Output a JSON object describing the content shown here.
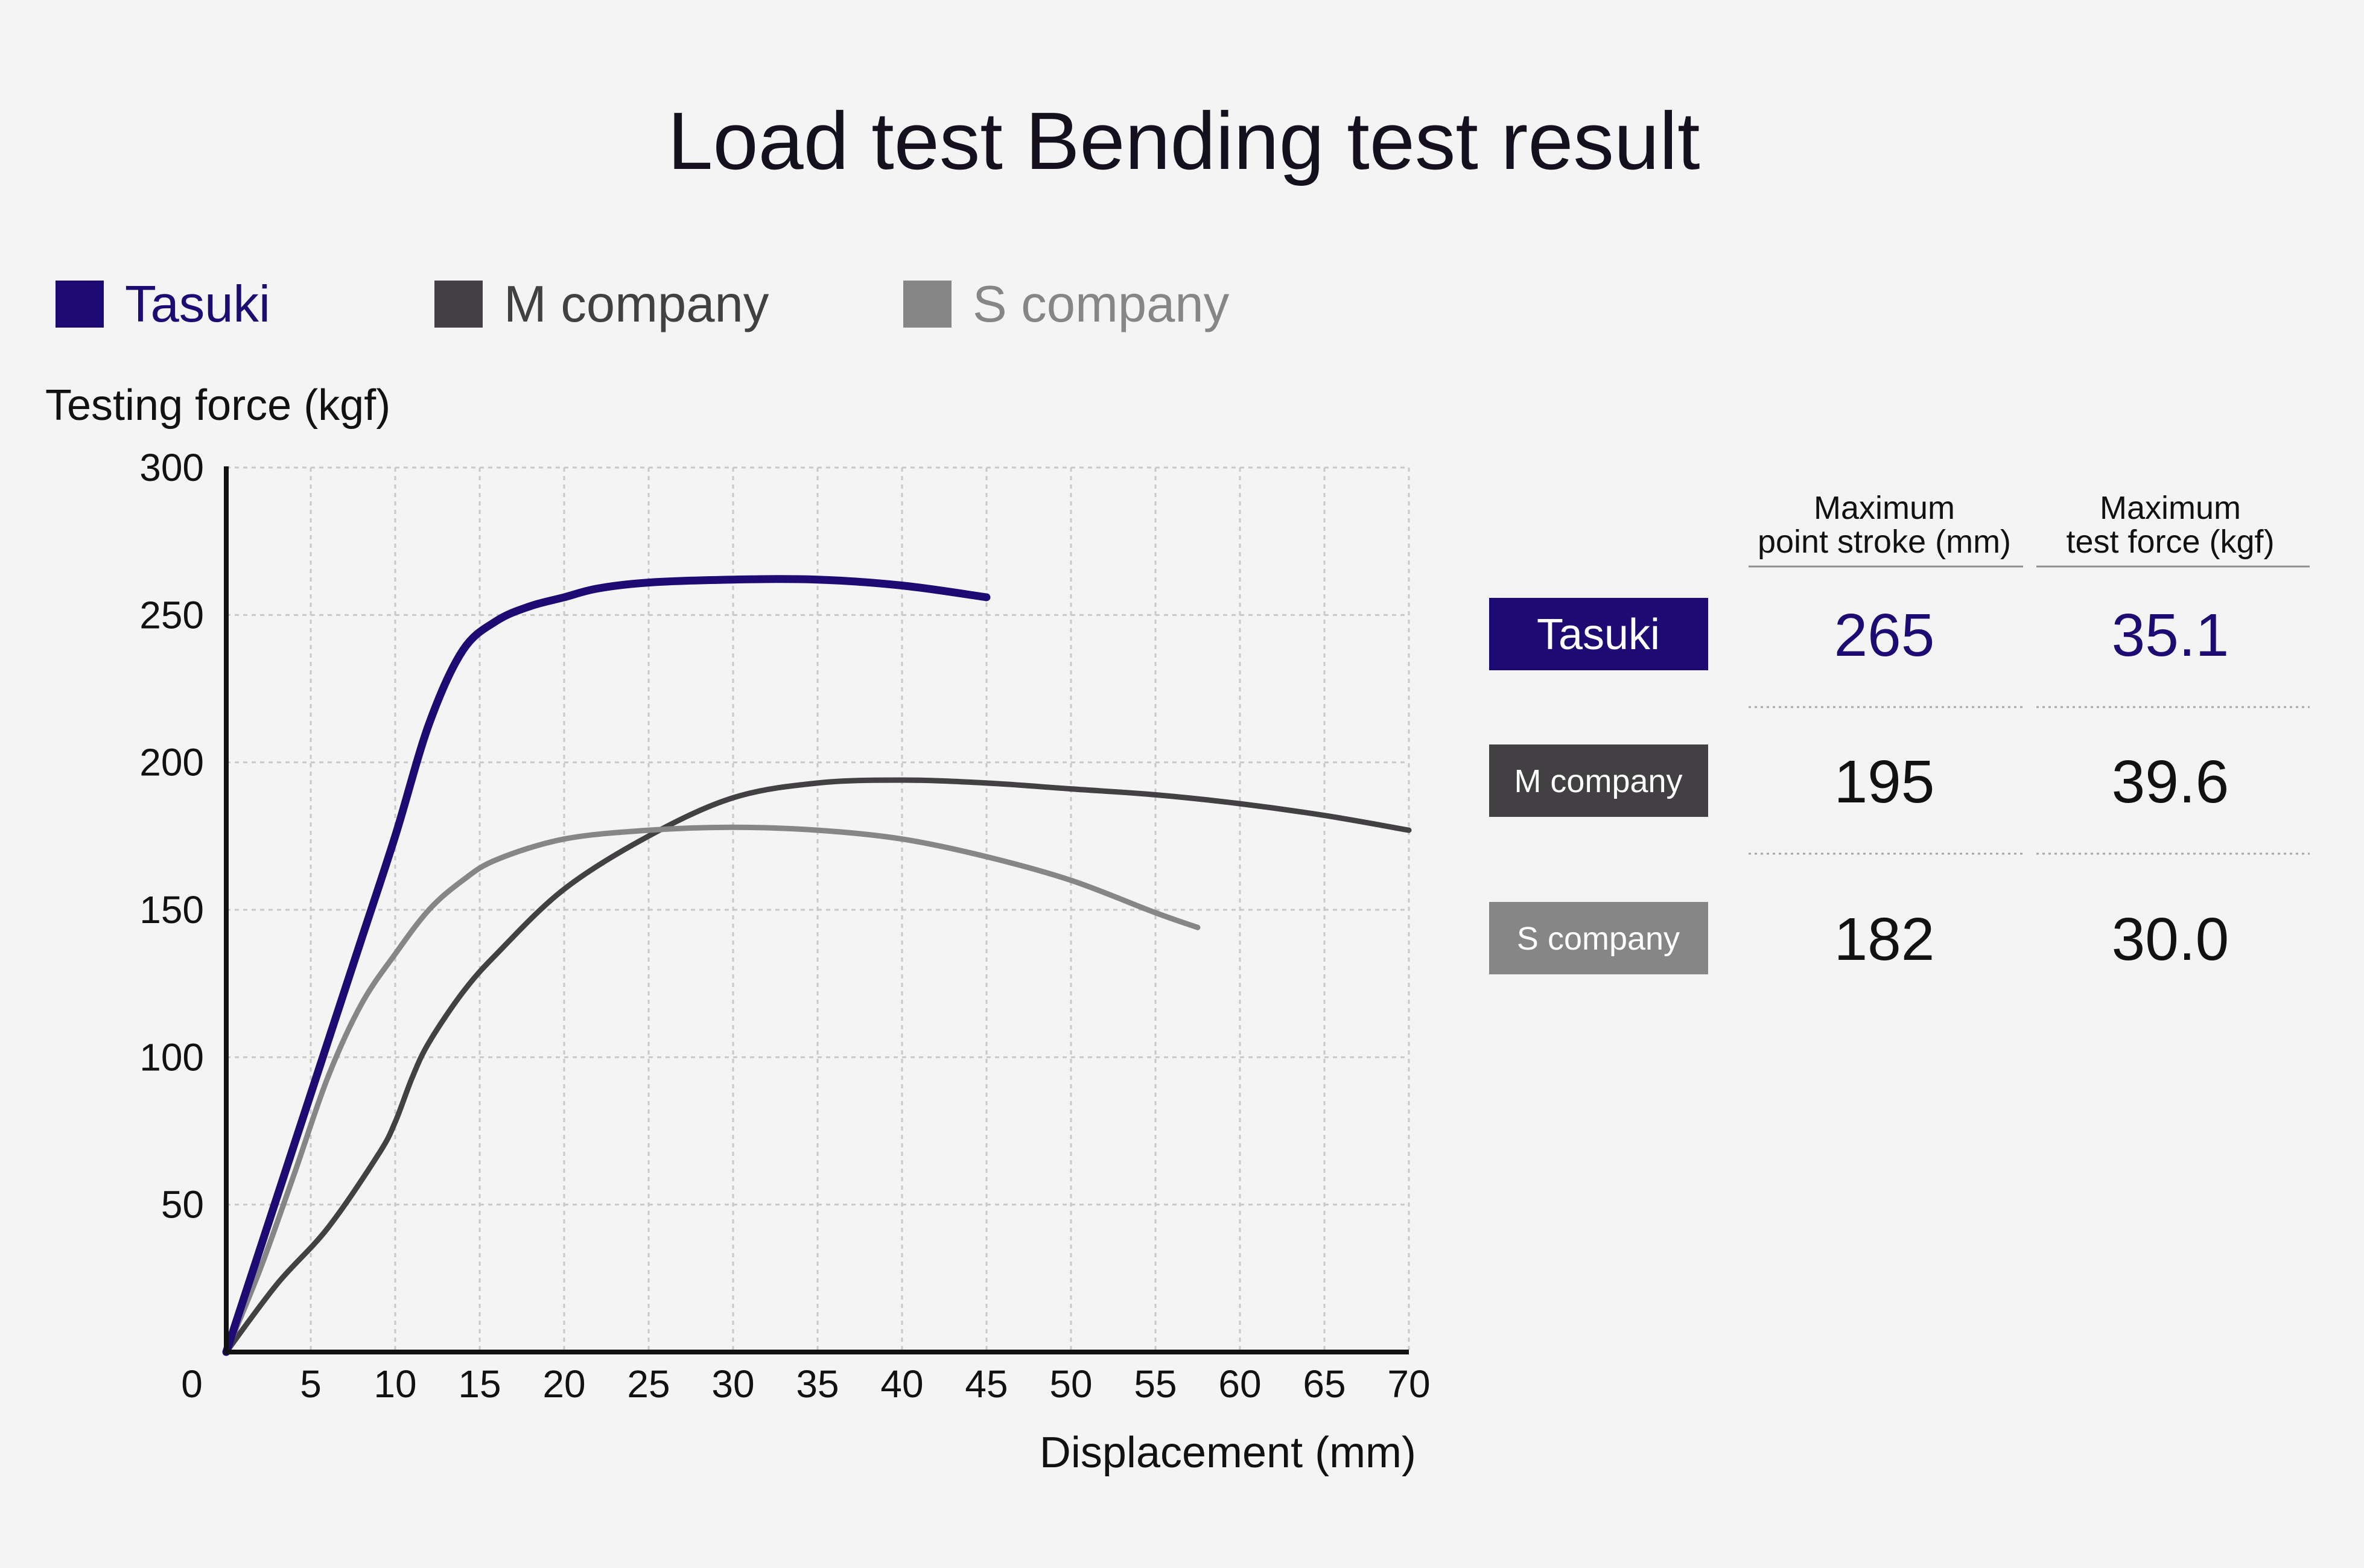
{
  "colors": {
    "tasuki": "#1e0a73",
    "m_company": "#424042",
    "s_company": "#868686",
    "text": "#111111",
    "background": "#f4f4f4"
  },
  "table": {
    "col_headers": [
      [
        "Maximum",
        "point stroke (mm)"
      ],
      [
        "Maximum",
        "test force (kgf)"
      ]
    ],
    "rows": [
      {
        "label": "Tasuki",
        "stroke": "265",
        "force": "35.1"
      },
      {
        "label": "M company",
        "stroke": "195",
        "force": "39.6"
      },
      {
        "label": "S company",
        "stroke": "182",
        "force": "30.0"
      }
    ]
  },
  "chart_data": {
    "type": "line",
    "title": "Load test Bending test result",
    "xlabel": "Displacement (mm)",
    "ylabel": "Testing force (kgf)",
    "xlim": [
      0,
      70
    ],
    "ylim": [
      0,
      300
    ],
    "x_ticks": [
      "5",
      "10",
      "15",
      "20",
      "25",
      "30",
      "35",
      "40",
      "45",
      "50",
      "55",
      "60",
      "65",
      "70"
    ],
    "y_ticks": [
      "50",
      "100",
      "150",
      "200",
      "250",
      "300"
    ],
    "origin_label": "0",
    "grid": true,
    "legend_position": "top-left",
    "series": [
      {
        "name": "Tasuki",
        "color": "#1e0a73",
        "x": [
          0,
          2,
          4,
          6,
          8,
          10,
          12,
          14,
          16,
          18,
          20,
          22,
          25,
          30,
          35,
          40,
          45
        ],
        "y": [
          0,
          35,
          70,
          105,
          140,
          175,
          213,
          238,
          248,
          253,
          256,
          259,
          261,
          262,
          262,
          260,
          256
        ]
      },
      {
        "name": "M company",
        "color": "#424042",
        "x": [
          0,
          3,
          6,
          9,
          10,
          11,
          12,
          14,
          16,
          20,
          25,
          30,
          35,
          40,
          45,
          50,
          55,
          60,
          65,
          70
        ],
        "y": [
          0,
          23,
          42,
          67,
          78,
          93,
          105,
          122,
          135,
          157,
          175,
          188,
          193,
          194,
          193,
          191,
          189,
          186,
          182,
          177
        ]
      },
      {
        "name": "S company",
        "color": "#868686",
        "x": [
          0,
          2,
          4,
          6,
          8,
          10,
          12,
          14,
          16,
          20,
          25,
          30,
          35,
          40,
          45,
          50,
          55,
          57.5
        ],
        "y": [
          0,
          28,
          60,
          93,
          118,
          135,
          150,
          160,
          167,
          174,
          177,
          178,
          177,
          174,
          168,
          160,
          149,
          144
        ]
      }
    ]
  }
}
